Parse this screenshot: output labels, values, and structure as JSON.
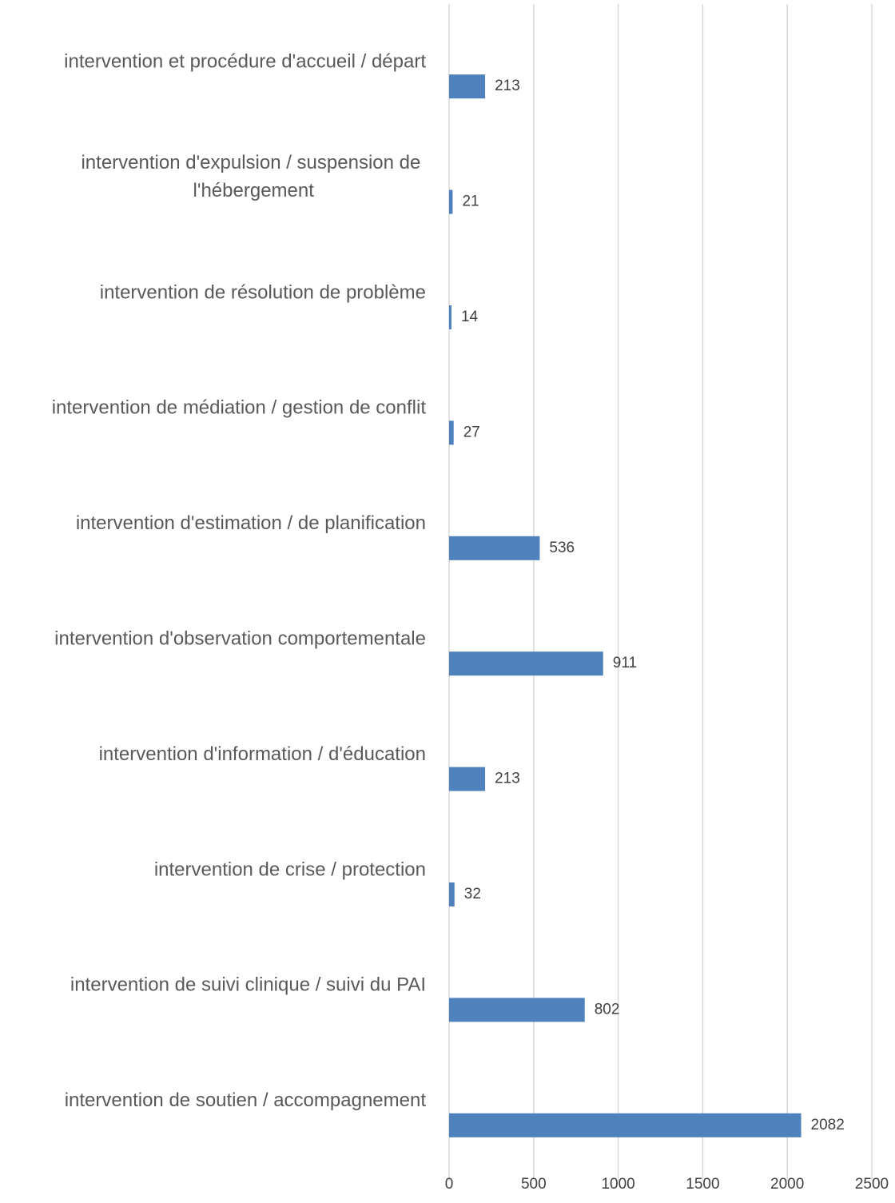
{
  "chart_data": {
    "type": "hbar",
    "categories": [
      "intervention et procédure d'accueil / départ",
      "intervention d'expulsion / suspension de l'hébergement",
      "intervention de résolution de problème",
      "intervention de médiation / gestion de conflit",
      "intervention d'estimation / de planification",
      "intervention d'observation comportementale",
      "intervention d'information / d'éducation",
      "intervention de crise / protection",
      "intervention de suivi clinique / suivi du PAI",
      "intervention de soutien / accompagnement"
    ],
    "values": [
      213,
      21,
      14,
      27,
      536,
      911,
      213,
      32,
      802,
      2082
    ],
    "color": "#4f81bd",
    "xlim": [
      0,
      2500
    ],
    "xticks": [
      0,
      500,
      1000,
      1500,
      2000,
      2500
    ],
    "grid": true
  }
}
